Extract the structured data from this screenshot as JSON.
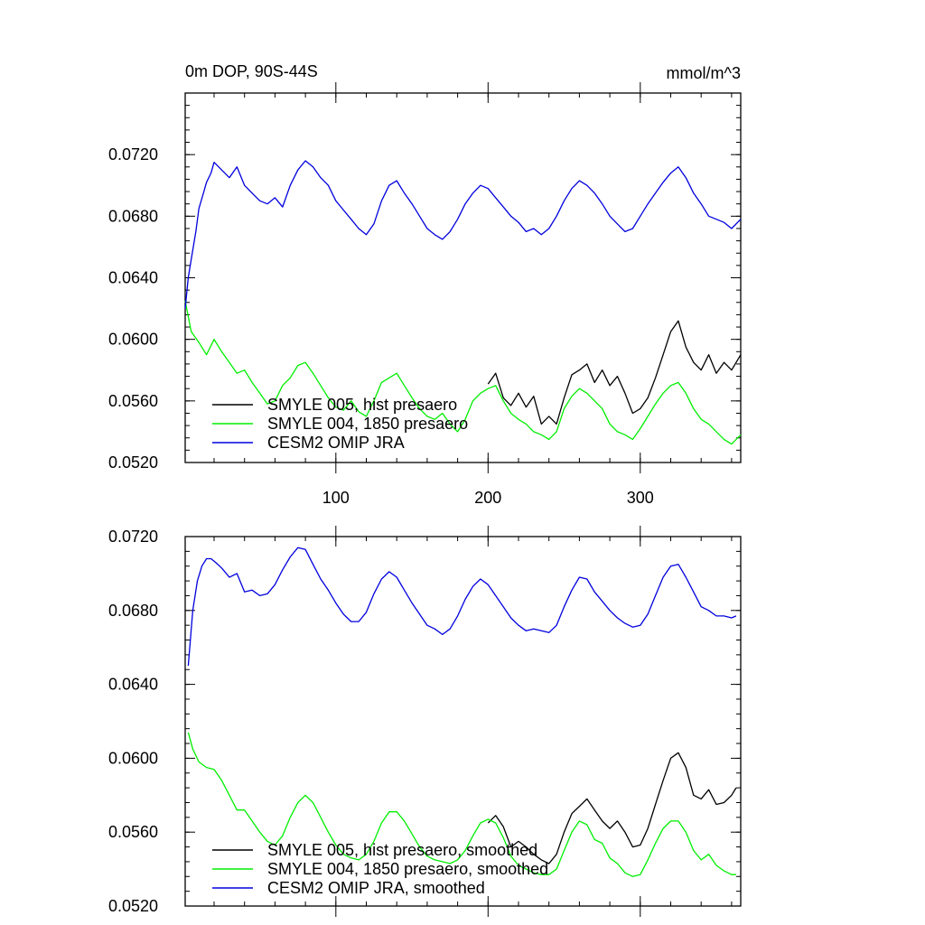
{
  "chart_data": [
    {
      "type": "line",
      "title_left": "0m DOP, 90S-44S",
      "title_right": "mmol/m^3",
      "xlim": [
        1,
        366
      ],
      "ylim": [
        0.052,
        0.076
      ],
      "x_ticks": [
        100,
        200,
        300
      ],
      "x_tick_labels": [
        "100",
        "200",
        "300"
      ],
      "y_ticks": [
        0.052,
        0.056,
        0.06,
        0.064,
        0.068,
        0.072
      ],
      "y_tick_labels": [
        "0.0520",
        "0.0560",
        "0.0600",
        "0.0640",
        "0.0680",
        "0.0720"
      ],
      "legend_position": "bottom-left",
      "series": [
        {
          "name": "SMYLE 005, hist presaero",
          "color": "#000000",
          "x": [
            200,
            205,
            210,
            215,
            220,
            225,
            230,
            235,
            240,
            245,
            250,
            255,
            260,
            265,
            270,
            275,
            280,
            285,
            290,
            295,
            300,
            305,
            310,
            315,
            320,
            325,
            330,
            335,
            340,
            345,
            350,
            355,
            360,
            366
          ],
          "y": [
            0.0571,
            0.0578,
            0.0562,
            0.0557,
            0.0565,
            0.0556,
            0.0563,
            0.0545,
            0.055,
            0.0545,
            0.0562,
            0.0577,
            0.058,
            0.0584,
            0.0572,
            0.058,
            0.057,
            0.0576,
            0.0565,
            0.0552,
            0.0555,
            0.0562,
            0.0575,
            0.059,
            0.0605,
            0.0612,
            0.0595,
            0.0585,
            0.058,
            0.059,
            0.0578,
            0.0585,
            0.058,
            0.059
          ]
        },
        {
          "name": "SMYLE 004, 1850 presaero",
          "color": "#00ee00",
          "x": [
            1,
            5,
            10,
            15,
            20,
            25,
            30,
            35,
            40,
            45,
            50,
            55,
            60,
            65,
            70,
            75,
            80,
            85,
            90,
            95,
            100,
            105,
            110,
            115,
            120,
            125,
            130,
            135,
            140,
            145,
            150,
            155,
            160,
            165,
            170,
            175,
            180,
            185,
            190,
            195,
            200,
            205,
            210,
            215,
            220,
            225,
            230,
            235,
            240,
            245,
            250,
            255,
            260,
            265,
            270,
            275,
            280,
            285,
            290,
            295,
            300,
            305,
            310,
            315,
            320,
            325,
            330,
            335,
            340,
            345,
            350,
            355,
            360,
            366
          ],
          "y": [
            0.0625,
            0.0605,
            0.0598,
            0.059,
            0.06,
            0.0592,
            0.0585,
            0.0578,
            0.058,
            0.0572,
            0.0565,
            0.0558,
            0.056,
            0.057,
            0.0575,
            0.0583,
            0.0585,
            0.0578,
            0.057,
            0.0562,
            0.0556,
            0.0554,
            0.056,
            0.0553,
            0.055,
            0.056,
            0.0572,
            0.0575,
            0.0578,
            0.057,
            0.0562,
            0.0555,
            0.055,
            0.0548,
            0.0552,
            0.0545,
            0.054,
            0.0548,
            0.056,
            0.0565,
            0.0568,
            0.057,
            0.056,
            0.0552,
            0.0548,
            0.0545,
            0.054,
            0.0538,
            0.0535,
            0.054,
            0.0555,
            0.0563,
            0.0568,
            0.0565,
            0.056,
            0.0555,
            0.0545,
            0.054,
            0.0538,
            0.0535,
            0.0542,
            0.055,
            0.0558,
            0.0565,
            0.057,
            0.0572,
            0.0565,
            0.0555,
            0.0548,
            0.0545,
            0.054,
            0.0535,
            0.0532,
            0.0538
          ]
        },
        {
          "name": "CESM2 OMIP JRA",
          "color": "#0000dd",
          "x": [
            1,
            3,
            5,
            8,
            10,
            13,
            15,
            18,
            20,
            25,
            30,
            35,
            40,
            45,
            50,
            55,
            60,
            65,
            70,
            75,
            80,
            85,
            90,
            95,
            100,
            105,
            110,
            115,
            120,
            125,
            130,
            135,
            140,
            145,
            150,
            155,
            160,
            165,
            170,
            175,
            180,
            185,
            190,
            195,
            200,
            205,
            210,
            215,
            220,
            225,
            230,
            235,
            240,
            245,
            250,
            255,
            260,
            265,
            270,
            275,
            280,
            285,
            290,
            295,
            300,
            305,
            310,
            315,
            320,
            325,
            330,
            335,
            340,
            345,
            350,
            355,
            360,
            366
          ],
          "y": [
            0.062,
            0.064,
            0.0652,
            0.067,
            0.0685,
            0.0695,
            0.0702,
            0.0708,
            0.0715,
            0.071,
            0.0705,
            0.0712,
            0.07,
            0.0695,
            0.069,
            0.0688,
            0.0692,
            0.0686,
            0.07,
            0.071,
            0.0716,
            0.0712,
            0.0705,
            0.07,
            0.069,
            0.0684,
            0.0678,
            0.0672,
            0.0668,
            0.0675,
            0.069,
            0.07,
            0.0703,
            0.0695,
            0.0688,
            0.068,
            0.0672,
            0.0668,
            0.0665,
            0.067,
            0.0678,
            0.0688,
            0.0695,
            0.07,
            0.0698,
            0.0692,
            0.0686,
            0.068,
            0.0676,
            0.067,
            0.0672,
            0.0668,
            0.0672,
            0.068,
            0.069,
            0.0698,
            0.0703,
            0.07,
            0.0695,
            0.0688,
            0.068,
            0.0675,
            0.067,
            0.0672,
            0.068,
            0.0688,
            0.0695,
            0.0702,
            0.0708,
            0.0712,
            0.0705,
            0.0695,
            0.0688,
            0.068,
            0.0678,
            0.0676,
            0.0672,
            0.0678
          ]
        }
      ]
    },
    {
      "type": "line",
      "xlim": [
        1,
        366
      ],
      "ylim": [
        0.052,
        0.072
      ],
      "x_ticks": [
        100,
        200,
        300
      ],
      "y_ticks": [
        0.052,
        0.056,
        0.06,
        0.064,
        0.068,
        0.072
      ],
      "y_tick_labels": [
        "0.0520",
        "0.0560",
        "0.0600",
        "0.0640",
        "0.0680",
        "0.0720"
      ],
      "legend_position": "bottom-left",
      "series": [
        {
          "name": "SMYLE 005, hist presaero, smoothed",
          "color": "#000000",
          "x": [
            200,
            205,
            210,
            215,
            220,
            225,
            230,
            235,
            240,
            245,
            250,
            255,
            260,
            265,
            270,
            275,
            280,
            285,
            290,
            295,
            300,
            305,
            310,
            315,
            320,
            325,
            330,
            335,
            340,
            345,
            350,
            355,
            360,
            363
          ],
          "y": [
            0.0565,
            0.0569,
            0.0563,
            0.0552,
            0.0555,
            0.0552,
            0.0548,
            0.0545,
            0.0543,
            0.0548,
            0.056,
            0.057,
            0.0574,
            0.0578,
            0.0572,
            0.0566,
            0.0562,
            0.0566,
            0.056,
            0.0552,
            0.0553,
            0.0562,
            0.0575,
            0.0588,
            0.06,
            0.0603,
            0.0595,
            0.058,
            0.0578,
            0.0583,
            0.0575,
            0.0576,
            0.058,
            0.0584
          ]
        },
        {
          "name": "SMYLE 004, 1850 presaero, smoothed",
          "color": "#00ee00",
          "x": [
            3,
            6,
            10,
            15,
            20,
            25,
            30,
            35,
            40,
            45,
            50,
            55,
            60,
            65,
            70,
            75,
            80,
            85,
            90,
            95,
            100,
            105,
            110,
            115,
            120,
            125,
            130,
            135,
            140,
            145,
            150,
            155,
            160,
            165,
            170,
            175,
            180,
            185,
            190,
            195,
            200,
            205,
            210,
            215,
            220,
            225,
            230,
            235,
            240,
            245,
            250,
            255,
            260,
            265,
            270,
            275,
            280,
            285,
            290,
            295,
            300,
            305,
            310,
            315,
            320,
            325,
            330,
            335,
            340,
            345,
            350,
            355,
            360,
            363
          ],
          "y": [
            0.0614,
            0.0605,
            0.0598,
            0.0595,
            0.0594,
            0.0588,
            0.058,
            0.0572,
            0.0572,
            0.0566,
            0.056,
            0.0555,
            0.0553,
            0.0558,
            0.0568,
            0.0576,
            0.058,
            0.0576,
            0.0568,
            0.056,
            0.0553,
            0.0548,
            0.0546,
            0.0545,
            0.0548,
            0.0555,
            0.0565,
            0.0571,
            0.0571,
            0.0566,
            0.0559,
            0.0552,
            0.0547,
            0.0545,
            0.0544,
            0.0543,
            0.0545,
            0.055,
            0.0558,
            0.0565,
            0.0567,
            0.0565,
            0.0557,
            0.0547,
            0.0542,
            0.054,
            0.0538,
            0.0537,
            0.0537,
            0.054,
            0.055,
            0.056,
            0.0566,
            0.0564,
            0.0556,
            0.0554,
            0.0546,
            0.0543,
            0.0538,
            0.0536,
            0.0537,
            0.0545,
            0.0554,
            0.0562,
            0.0566,
            0.0566,
            0.056,
            0.055,
            0.0545,
            0.0548,
            0.0542,
            0.0539,
            0.0537,
            0.0537
          ]
        },
        {
          "name": "CESM2 OMIP JRA, smoothed",
          "color": "#0000dd",
          "x": [
            3,
            6,
            9,
            12,
            15,
            18,
            21,
            25,
            30,
            35,
            40,
            45,
            50,
            55,
            60,
            65,
            70,
            75,
            80,
            85,
            90,
            95,
            100,
            105,
            110,
            115,
            120,
            125,
            130,
            135,
            140,
            145,
            150,
            155,
            160,
            165,
            170,
            175,
            180,
            185,
            190,
            195,
            200,
            205,
            210,
            215,
            220,
            225,
            230,
            235,
            240,
            245,
            250,
            255,
            260,
            265,
            270,
            275,
            280,
            285,
            290,
            295,
            300,
            305,
            310,
            315,
            320,
            325,
            330,
            335,
            340,
            345,
            350,
            355,
            360,
            363
          ],
          "y": [
            0.065,
            0.068,
            0.0696,
            0.0704,
            0.0708,
            0.0708,
            0.0706,
            0.0703,
            0.0698,
            0.07,
            0.069,
            0.0691,
            0.0688,
            0.0689,
            0.0694,
            0.0702,
            0.0709,
            0.0714,
            0.0713,
            0.0705,
            0.0697,
            0.0691,
            0.0684,
            0.0678,
            0.0674,
            0.0674,
            0.0679,
            0.0689,
            0.0697,
            0.0701,
            0.0698,
            0.0691,
            0.0684,
            0.0678,
            0.0672,
            0.067,
            0.0667,
            0.067,
            0.0677,
            0.0686,
            0.0693,
            0.0697,
            0.0694,
            0.0688,
            0.0682,
            0.0676,
            0.0672,
            0.0669,
            0.067,
            0.0669,
            0.0668,
            0.0672,
            0.0682,
            0.0691,
            0.0698,
            0.0697,
            0.069,
            0.0685,
            0.068,
            0.0676,
            0.0673,
            0.0671,
            0.0672,
            0.0678,
            0.0688,
            0.0698,
            0.0704,
            0.0705,
            0.0698,
            0.069,
            0.0682,
            0.068,
            0.0677,
            0.0677,
            0.0676,
            0.0677
          ]
        }
      ]
    }
  ]
}
